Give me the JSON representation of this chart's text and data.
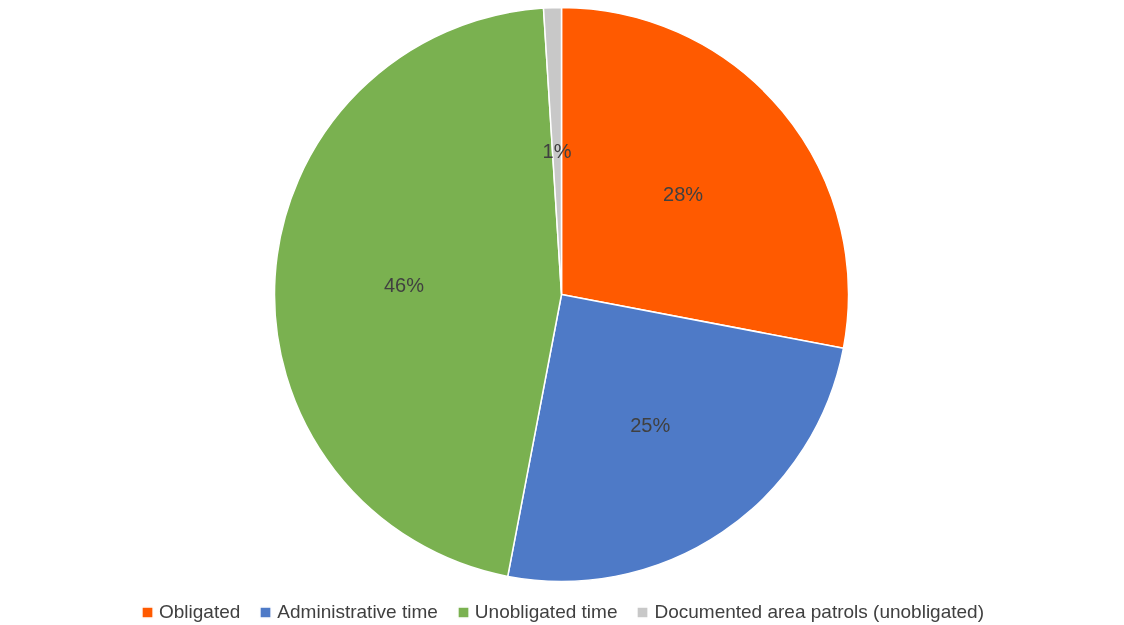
{
  "chart_data": {
    "type": "pie",
    "categories": [
      "Obligated",
      "Administrative time",
      "Unobligated time",
      "Documented area patrols (unobligated)"
    ],
    "values": [
      28,
      25,
      46,
      1
    ],
    "colors": [
      "#ff5a00",
      "#4e7ac7",
      "#7ab150",
      "#c8c8c8"
    ],
    "value_labels": [
      "28%",
      "25%",
      "46%",
      "1%"
    ],
    "legend": "bottom"
  }
}
